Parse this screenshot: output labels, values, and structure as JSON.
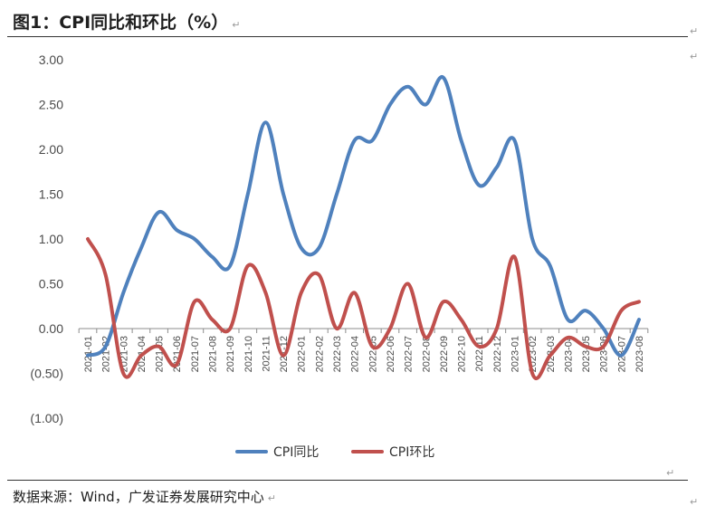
{
  "figure": {
    "title": "图1：CPI同比和环比（%）",
    "source": "数据来源：Wind，广发证券发展研究中心"
  },
  "chart_data": {
    "type": "line",
    "title": "图1：CPI同比和环比（%）",
    "xlabel": "",
    "ylabel": "",
    "ylim": [
      -1.0,
      3.0
    ],
    "y_ticks": [
      3.0,
      2.5,
      2.0,
      1.5,
      1.0,
      0.5,
      0.0,
      -0.5,
      -1.0
    ],
    "y_tick_labels": [
      "3.00",
      "2.50",
      "2.00",
      "1.50",
      "1.00",
      "0.50",
      "0.00",
      "(0.50)",
      "(1.00)"
    ],
    "grid": false,
    "legend_position": "bottom",
    "x": [
      "2021-01",
      "2021-02",
      "2021-03",
      "2021-04",
      "2021-05",
      "2021-06",
      "2021-07",
      "2021-08",
      "2021-09",
      "2021-10",
      "2021-11",
      "2021-12",
      "2022-01",
      "2022-02",
      "2022-03",
      "2022-04",
      "2022-05",
      "2022-06",
      "2022-07",
      "2022-08",
      "2022-09",
      "2022-10",
      "2022-11",
      "2022-12",
      "2023-01",
      "2023-02",
      "2023-03",
      "2023-04",
      "2023-05",
      "2023-06",
      "2023-07",
      "2023-08"
    ],
    "series": [
      {
        "name": "CPI同比",
        "color": "#4F81BD",
        "values": [
          -0.3,
          -0.2,
          0.4,
          0.9,
          1.3,
          1.1,
          1.0,
          0.8,
          0.7,
          1.5,
          2.3,
          1.5,
          0.9,
          0.9,
          1.5,
          2.1,
          2.1,
          2.5,
          2.7,
          2.5,
          2.8,
          2.1,
          1.6,
          1.8,
          2.1,
          1.0,
          0.7,
          0.1,
          0.2,
          0.0,
          -0.3,
          0.1
        ]
      },
      {
        "name": "CPI环比",
        "color": "#C0504D",
        "values": [
          1.0,
          0.6,
          -0.5,
          -0.3,
          -0.2,
          -0.4,
          0.3,
          0.1,
          0.0,
          0.7,
          0.4,
          -0.3,
          0.4,
          0.6,
          0.0,
          0.4,
          -0.2,
          0.0,
          0.5,
          -0.1,
          0.3,
          0.1,
          -0.2,
          0.0,
          0.8,
          -0.5,
          -0.3,
          -0.1,
          -0.2,
          -0.2,
          0.2,
          0.3
        ]
      }
    ]
  }
}
